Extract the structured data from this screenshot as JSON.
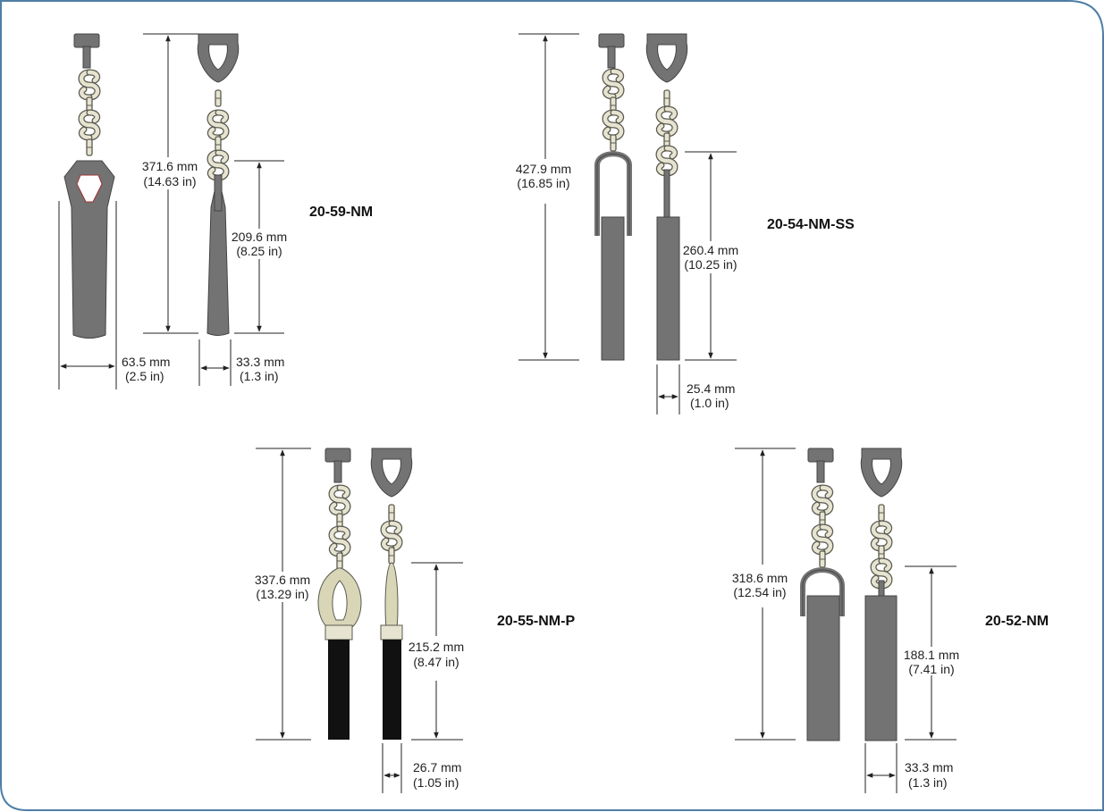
{
  "colors": {
    "frame": "#4f7ea6",
    "weight_gray": "#737373",
    "weight_black": "#111111",
    "hook_fill": "#e6e4d0",
    "hook_stroke": "#5a5a50",
    "tab_cream": "#d9d6b8",
    "loop_inner": "#ffffff"
  },
  "diagrams": [
    {
      "model": "20-59-NM",
      "length_mm": "371.6 mm",
      "length_in": "(14.63 in)",
      "body_mm": "209.6 mm",
      "body_in": "(8.25 in)",
      "width_wide_mm": "63.5 mm",
      "width_wide_in": "(2.5 in)",
      "width_mm": "33.3 mm",
      "width_in": "(1.3 in)"
    },
    {
      "model": "20-54-NM-SS",
      "length_mm": "427.9 mm",
      "length_in": "(16.85 in)",
      "body_mm": "260.4 mm",
      "body_in": "(10.25 in)",
      "width_mm": "25.4 mm",
      "width_in": "(1.0 in)"
    },
    {
      "model": "20-55-NM-P",
      "length_mm": "337.6 mm",
      "length_in": "(13.29 in)",
      "body_mm": "215.2 mm",
      "body_in": "(8.47 in)",
      "width_mm": "26.7 mm",
      "width_in": "(1.05 in)"
    },
    {
      "model": "20-52-NM",
      "length_mm": "318.6 mm",
      "length_in": "(12.54 in)",
      "body_mm": "188.1 mm",
      "body_in": "(7.41 in)",
      "width_mm": "33.3 mm",
      "width_in": "(1.3 in)"
    }
  ]
}
